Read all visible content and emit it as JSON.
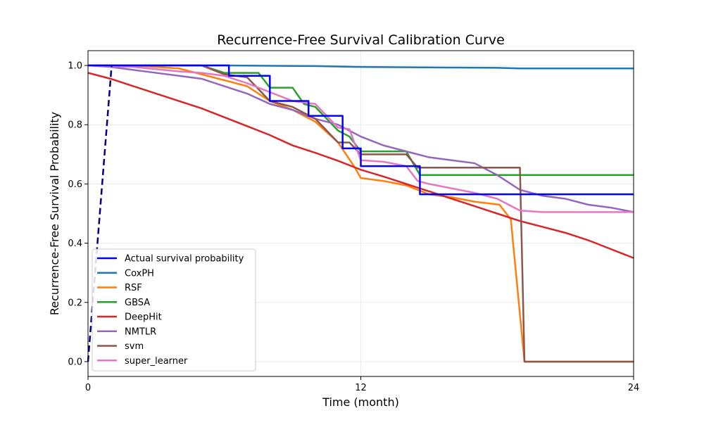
{
  "chart_data": {
    "type": "line",
    "title": "Recurrence-Free Survival Calibration Curve",
    "xlabel": "Time (month)",
    "ylabel": "Recurrence-Free Survival Probability",
    "xlim": [
      0,
      24
    ],
    "ylim": [
      -0.05,
      1.05
    ],
    "x_ticks": [
      0,
      12,
      24
    ],
    "y_ticks": [
      0.0,
      0.2,
      0.4,
      0.6,
      0.8,
      1.0
    ],
    "y_tick_labels": [
      "0.0",
      "0.2",
      "0.4",
      "0.6",
      "0.8",
      "1.0"
    ],
    "grid": true,
    "legend_position": "lower-left",
    "series": [
      {
        "name": "Actual survival probability",
        "color": "#0000ff",
        "style": "step",
        "x": [
          0,
          6,
          6.2,
          7.8,
          8,
          9.5,
          9.7,
          11,
          11.2,
          11.8,
          12,
          14.4,
          14.6,
          24
        ],
        "y": [
          1.0,
          1.0,
          0.965,
          0.965,
          0.88,
          0.88,
          0.83,
          0.83,
          0.72,
          0.72,
          0.66,
          0.66,
          0.565,
          0.565
        ]
      },
      {
        "name": "Reference diagonal",
        "color": "#000080",
        "style": "dashed",
        "legend": false,
        "x": [
          0,
          1.04
        ],
        "y": [
          0.0,
          1.0
        ]
      },
      {
        "name": "CoxPH",
        "color": "#1f77b4",
        "x": [
          0,
          6,
          10,
          12,
          16,
          18,
          19,
          24
        ],
        "y": [
          1.0,
          1.0,
          0.998,
          0.995,
          0.993,
          0.992,
          0.99,
          0.99
        ]
      },
      {
        "name": "RSF",
        "color": "#ff7f0e",
        "x": [
          0,
          2,
          4,
          5.5,
          6,
          7,
          8,
          9,
          10,
          11,
          11.7,
          12,
          13,
          14,
          15,
          16,
          17,
          18.1,
          18.6,
          19.2,
          24
        ],
        "y": [
          1.0,
          1.0,
          0.99,
          0.96,
          0.95,
          0.93,
          0.88,
          0.85,
          0.81,
          0.74,
          0.66,
          0.62,
          0.61,
          0.595,
          0.565,
          0.555,
          0.54,
          0.53,
          0.48,
          0.0,
          0.0
        ]
      },
      {
        "name": "GBSA",
        "color": "#2ca02c",
        "x": [
          0,
          5,
          6,
          6.5,
          7.5,
          8,
          8.5,
          9,
          9.5,
          10,
          11,
          11.5,
          12,
          14,
          14.6,
          18.6,
          24
        ],
        "y": [
          1.0,
          1.0,
          0.975,
          0.975,
          0.975,
          0.925,
          0.925,
          0.925,
          0.87,
          0.86,
          0.78,
          0.76,
          0.71,
          0.71,
          0.63,
          0.63,
          0.63
        ]
      },
      {
        "name": "DeepHit",
        "color": "#d62728",
        "x": [
          0,
          1,
          2,
          3,
          4,
          5,
          6,
          7,
          8,
          9,
          10,
          11,
          12,
          13,
          14,
          15,
          16,
          17,
          18,
          19,
          20,
          21,
          22,
          23,
          24
        ],
        "y": [
          0.975,
          0.955,
          0.93,
          0.905,
          0.88,
          0.855,
          0.825,
          0.795,
          0.765,
          0.73,
          0.705,
          0.678,
          0.648,
          0.625,
          0.6,
          0.575,
          0.55,
          0.525,
          0.5,
          0.475,
          0.455,
          0.435,
          0.41,
          0.38,
          0.35
        ]
      },
      {
        "name": "NMTLR",
        "color": "#9467bd",
        "x": [
          0,
          1,
          2,
          3,
          4,
          5,
          6,
          7,
          8,
          9,
          10,
          11,
          12,
          13,
          14,
          15,
          16,
          17,
          18,
          19,
          20,
          21,
          22,
          23,
          24
        ],
        "y": [
          1.0,
          0.995,
          0.985,
          0.975,
          0.965,
          0.955,
          0.93,
          0.905,
          0.87,
          0.85,
          0.82,
          0.8,
          0.76,
          0.73,
          0.71,
          0.69,
          0.68,
          0.67,
          0.63,
          0.58,
          0.56,
          0.55,
          0.53,
          0.52,
          0.505
        ]
      },
      {
        "name": "svm",
        "color": "#8c564b",
        "x": [
          0,
          5,
          6,
          7,
          8,
          9,
          10,
          11,
          11.5,
          12,
          14,
          14.5,
          15,
          19,
          19.2,
          24
        ],
        "y": [
          1.0,
          1.0,
          0.97,
          0.96,
          0.88,
          0.86,
          0.82,
          0.74,
          0.74,
          0.7,
          0.7,
          0.655,
          0.655,
          0.655,
          0.0,
          0.0
        ]
      },
      {
        "name": "super_learner",
        "color": "#e377c2",
        "x": [
          0,
          2,
          4,
          5,
          6,
          7,
          8,
          9,
          10,
          11,
          11.5,
          12,
          13,
          14,
          14.5,
          15,
          16,
          17,
          18,
          19,
          20,
          21,
          22,
          23,
          24
        ],
        "y": [
          1.0,
          0.995,
          0.98,
          0.975,
          0.965,
          0.94,
          0.91,
          0.88,
          0.87,
          0.79,
          0.785,
          0.68,
          0.675,
          0.66,
          0.61,
          0.6,
          0.585,
          0.57,
          0.55,
          0.51,
          0.505,
          0.505,
          0.505,
          0.505,
          0.505
        ]
      }
    ]
  }
}
